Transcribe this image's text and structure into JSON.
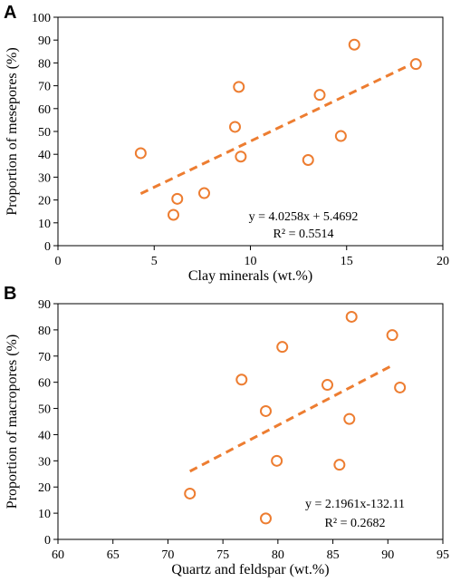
{
  "colors": {
    "marker": "#ED7D31",
    "trend": "#ED7D31",
    "axis": "#000000"
  },
  "chart_data": [
    {
      "panel_label": "A",
      "type": "scatter",
      "xlabel": "Clay minerals (wt.%)",
      "ylabel": "Proportion of mesepores (%)",
      "xlim": [
        0,
        20
      ],
      "ylim": [
        0,
        100
      ],
      "xticks": [
        "0",
        "5",
        "10",
        "15",
        "20"
      ],
      "yticks": [
        "0",
        "10",
        "20",
        "30",
        "40",
        "50",
        "60",
        "70",
        "80",
        "90",
        "100"
      ],
      "points": [
        {
          "x": 4.3,
          "y": 40.5
        },
        {
          "x": 6.0,
          "y": 13.5
        },
        {
          "x": 6.2,
          "y": 20.5
        },
        {
          "x": 7.6,
          "y": 23
        },
        {
          "x": 9.2,
          "y": 52
        },
        {
          "x": 9.4,
          "y": 69.5
        },
        {
          "x": 9.5,
          "y": 39
        },
        {
          "x": 13.0,
          "y": 37.5
        },
        {
          "x": 13.6,
          "y": 66
        },
        {
          "x": 14.7,
          "y": 48
        },
        {
          "x": 15.4,
          "y": 88
        },
        {
          "x": 18.6,
          "y": 79.5
        }
      ],
      "trendline": {
        "slope": 4.0258,
        "intercept": 5.4692,
        "x_range": [
          4.3,
          18.6
        ]
      },
      "equation": "y = 4.0258x + 5.4692",
      "r_squared": "R² = 0.5514"
    },
    {
      "panel_label": "B",
      "type": "scatter",
      "xlabel": "Quartz and feldspar (wt.%)",
      "ylabel": "Proportion of macropores (%)",
      "xlim": [
        60,
        95
      ],
      "ylim": [
        0,
        90
      ],
      "xticks": [
        "60",
        "65",
        "70",
        "75",
        "80",
        "85",
        "90",
        "95"
      ],
      "yticks": [
        "0",
        "10",
        "20",
        "30",
        "40",
        "50",
        "60",
        "70",
        "80",
        "90"
      ],
      "points": [
        {
          "x": 72.0,
          "y": 17.5
        },
        {
          "x": 76.7,
          "y": 61
        },
        {
          "x": 78.9,
          "y": 49
        },
        {
          "x": 78.9,
          "y": 8
        },
        {
          "x": 79.9,
          "y": 30
        },
        {
          "x": 80.4,
          "y": 73.5
        },
        {
          "x": 84.5,
          "y": 59
        },
        {
          "x": 85.6,
          "y": 28.5
        },
        {
          "x": 86.5,
          "y": 46
        },
        {
          "x": 86.7,
          "y": 85
        },
        {
          "x": 90.4,
          "y": 78
        },
        {
          "x": 91.1,
          "y": 58
        }
      ],
      "trendline": {
        "slope": 2.1961,
        "intercept": -132.11,
        "x_range": [
          72.0,
          90.4
        ]
      },
      "equation": "y = 2.1961x-132.11",
      "r_squared": "R² = 0.2682"
    }
  ]
}
